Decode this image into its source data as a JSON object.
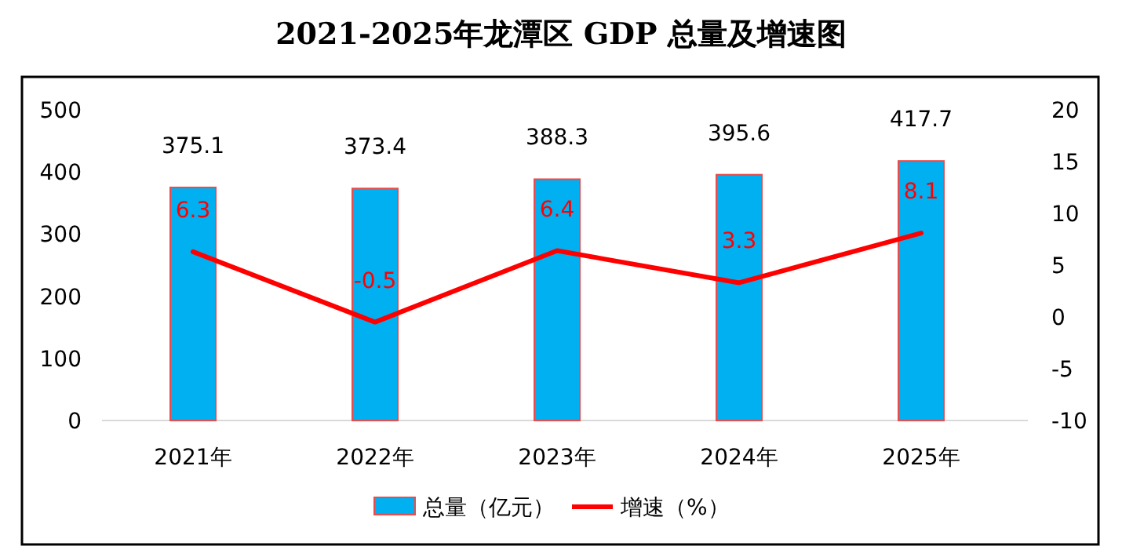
{
  "chart_data": {
    "type": "bar",
    "title": "2021-2025年龙潭区 GDP 总量及增速图",
    "categories": [
      "2021年",
      "2022年",
      "2023年",
      "2024年",
      "2025年"
    ],
    "series": [
      {
        "name": "总量（亿元）",
        "color": "#00b0f0",
        "values": [
          375.1,
          373.4,
          388.3,
          395.6,
          417.7
        ]
      },
      {
        "name": "增速（%）",
        "type": "line",
        "axis": "y2",
        "color": "#ff0000",
        "values": [
          6.3,
          -0.5,
          6.4,
          3.3,
          8.1
        ]
      }
    ],
    "ylim": [
      0,
      500
    ],
    "yticks": [
      0,
      100,
      200,
      300,
      400,
      500
    ],
    "y2lim": [
      -10,
      20
    ],
    "y2ticks": [
      -10,
      -5,
      0,
      5,
      10,
      15,
      20
    ],
    "data_labels": true,
    "legend": "bottom",
    "grid": false,
    "marker": "none",
    "line_style": "solid"
  }
}
